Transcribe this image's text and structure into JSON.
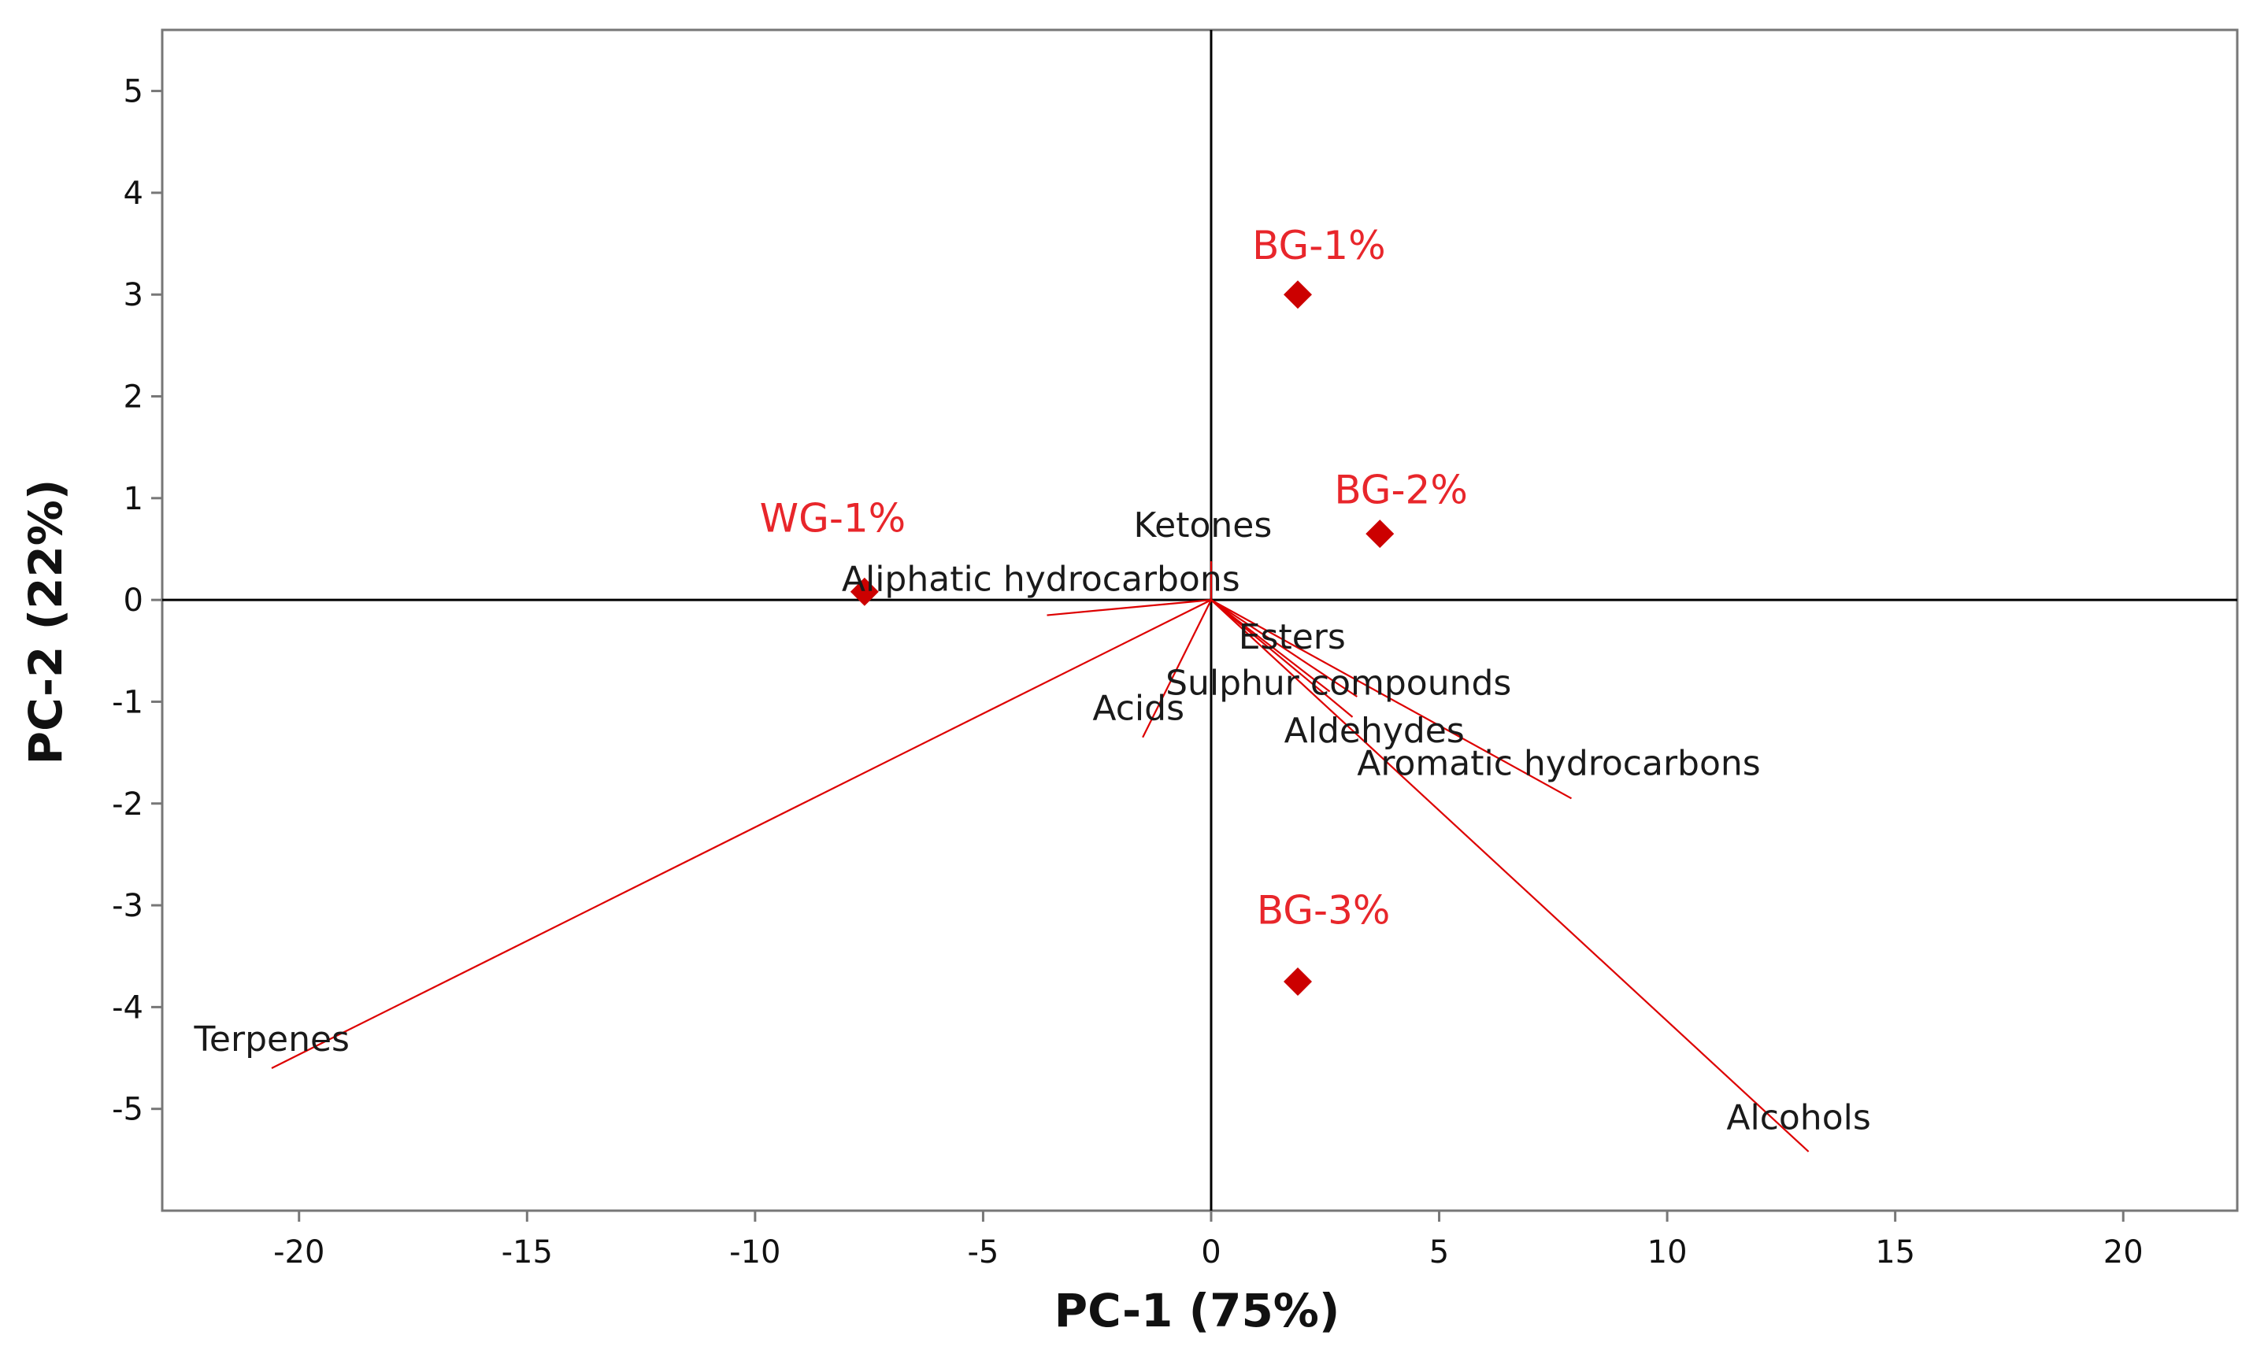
{
  "chart_data": {
    "type": "scatter",
    "subtype": "pca-biplot",
    "title": "",
    "xlabel": "PC-1 (75%)",
    "ylabel": "PC-2 (22%)",
    "xlim": [
      -23,
      22.5
    ],
    "ylim": [
      -6,
      5.6
    ],
    "xticks": [
      -20,
      -15,
      -10,
      -5,
      0,
      5,
      10,
      15,
      20
    ],
    "yticks": [
      -5,
      -4,
      -3,
      -2,
      -1,
      0,
      1,
      2,
      3,
      4,
      5
    ],
    "xtick_labels": [
      "-20",
      "-15",
      "-10",
      "-5",
      "0",
      "5",
      "10",
      "15",
      "20"
    ],
    "ytick_labels": [
      "-5",
      "-4",
      "-3",
      "-2",
      "-1",
      "0",
      "1",
      "2",
      "3",
      "4",
      "5"
    ],
    "grid": false,
    "reference_lines": {
      "x": 0,
      "y": 0
    },
    "colors": {
      "sample": "#cc0000",
      "sample_label": "#e8262b",
      "loading": "#dd0000",
      "axis": "#000000",
      "frame": "#777777"
    },
    "samples": [
      {
        "name": "WG-1%",
        "x": -7.6,
        "y": 0.08
      },
      {
        "name": "BG-1%",
        "x": 1.9,
        "y": 3.0
      },
      {
        "name": "BG-2%",
        "x": 3.7,
        "y": 0.65
      },
      {
        "name": "BG-3%",
        "x": 1.9,
        "y": -3.75
      }
    ],
    "loadings": [
      {
        "name": "Ketones",
        "x": 0.0,
        "y": 0.38
      },
      {
        "name": "Aliphatic hydrocarbons",
        "x": -3.6,
        "y": -0.15
      },
      {
        "name": "Esters",
        "x": 2.6,
        "y": -0.9
      },
      {
        "name": "Sulphur compounds",
        "x": 3.1,
        "y": -1.15
      },
      {
        "name": "Acids",
        "x": -1.5,
        "y": -1.35
      },
      {
        "name": "Aldehydes",
        "x": 3.2,
        "y": -0.95
      },
      {
        "name": "Aromatic hydrocarbons",
        "x": 7.9,
        "y": -1.95
      },
      {
        "name": "Terpenes",
        "x": -20.6,
        "y": -4.6
      },
      {
        "name": "Alcohols",
        "x": 13.1,
        "y": -5.42
      }
    ],
    "variable_labels": [
      {
        "name": "Ketones",
        "x": -1.7,
        "y": 0.62
      },
      {
        "name": "Aliphatic hydrocarbons",
        "x": -8.1,
        "y": 0.09
      },
      {
        "name": "Esters",
        "x": 0.6,
        "y": -0.48
      },
      {
        "name": "Sulphur compounds",
        "x": -1.0,
        "y": -0.93
      },
      {
        "name": "Acids",
        "x": -2.6,
        "y": -1.18
      },
      {
        "name": "Aldehydes",
        "x": 1.6,
        "y": -1.4
      },
      {
        "name": "Aromatic hydrocarbons",
        "x": 3.2,
        "y": -1.72
      },
      {
        "name": "Terpenes",
        "x": -22.3,
        "y": -4.43
      },
      {
        "name": "Alcohols",
        "x": 11.3,
        "y": -5.2
      }
    ],
    "sample_labels": [
      {
        "name": "WG-1%",
        "x": -9.9,
        "y": 0.67
      },
      {
        "name": "BG-1%",
        "x": 0.9,
        "y": 3.35
      },
      {
        "name": "BG-2%",
        "x": 2.7,
        "y": 0.95
      },
      {
        "name": "BG-3%",
        "x": 1.0,
        "y": -3.18
      }
    ]
  }
}
